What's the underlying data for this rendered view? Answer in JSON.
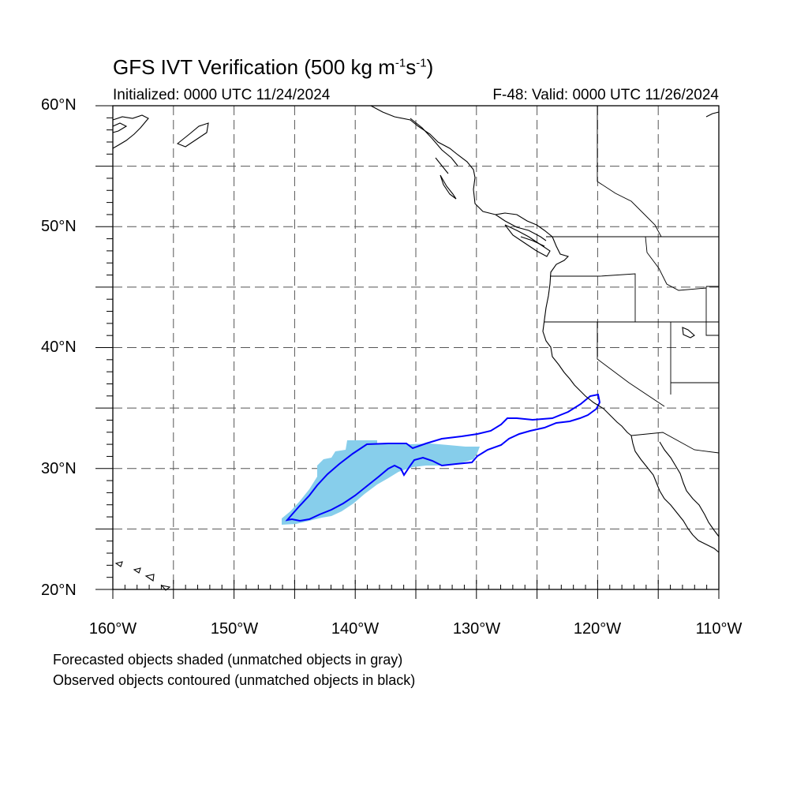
{
  "title": {
    "main": "GFS IVT Verification (500 kg m",
    "sup1": "-1",
    "mid": "s",
    "sup2": "-1",
    "end": ")"
  },
  "initialized": "Initialized: 0000 UTC 11/24/2024",
  "valid": "F-48: Valid: 0000 UTC 11/26/2024",
  "lat_labels": [
    "60°N",
    "50°N",
    "40°N",
    "30°N",
    "20°N"
  ],
  "lon_labels": [
    "160°W",
    "150°W",
    "140°W",
    "130°W",
    "120°W",
    "110°W"
  ],
  "notes": [
    "Forecasted objects shaded (unmatched objects in gray)",
    "Observed objects contoured (unmatched objects in black)"
  ],
  "map_extent": {
    "lon_min": -160,
    "lon_max": -110,
    "lat_min": 20,
    "lat_max": 60
  },
  "colors": {
    "forecast_fill": "#87ceeb",
    "observed_contour": "#0000ff",
    "coast": "#000000",
    "grid": "#555555"
  }
}
